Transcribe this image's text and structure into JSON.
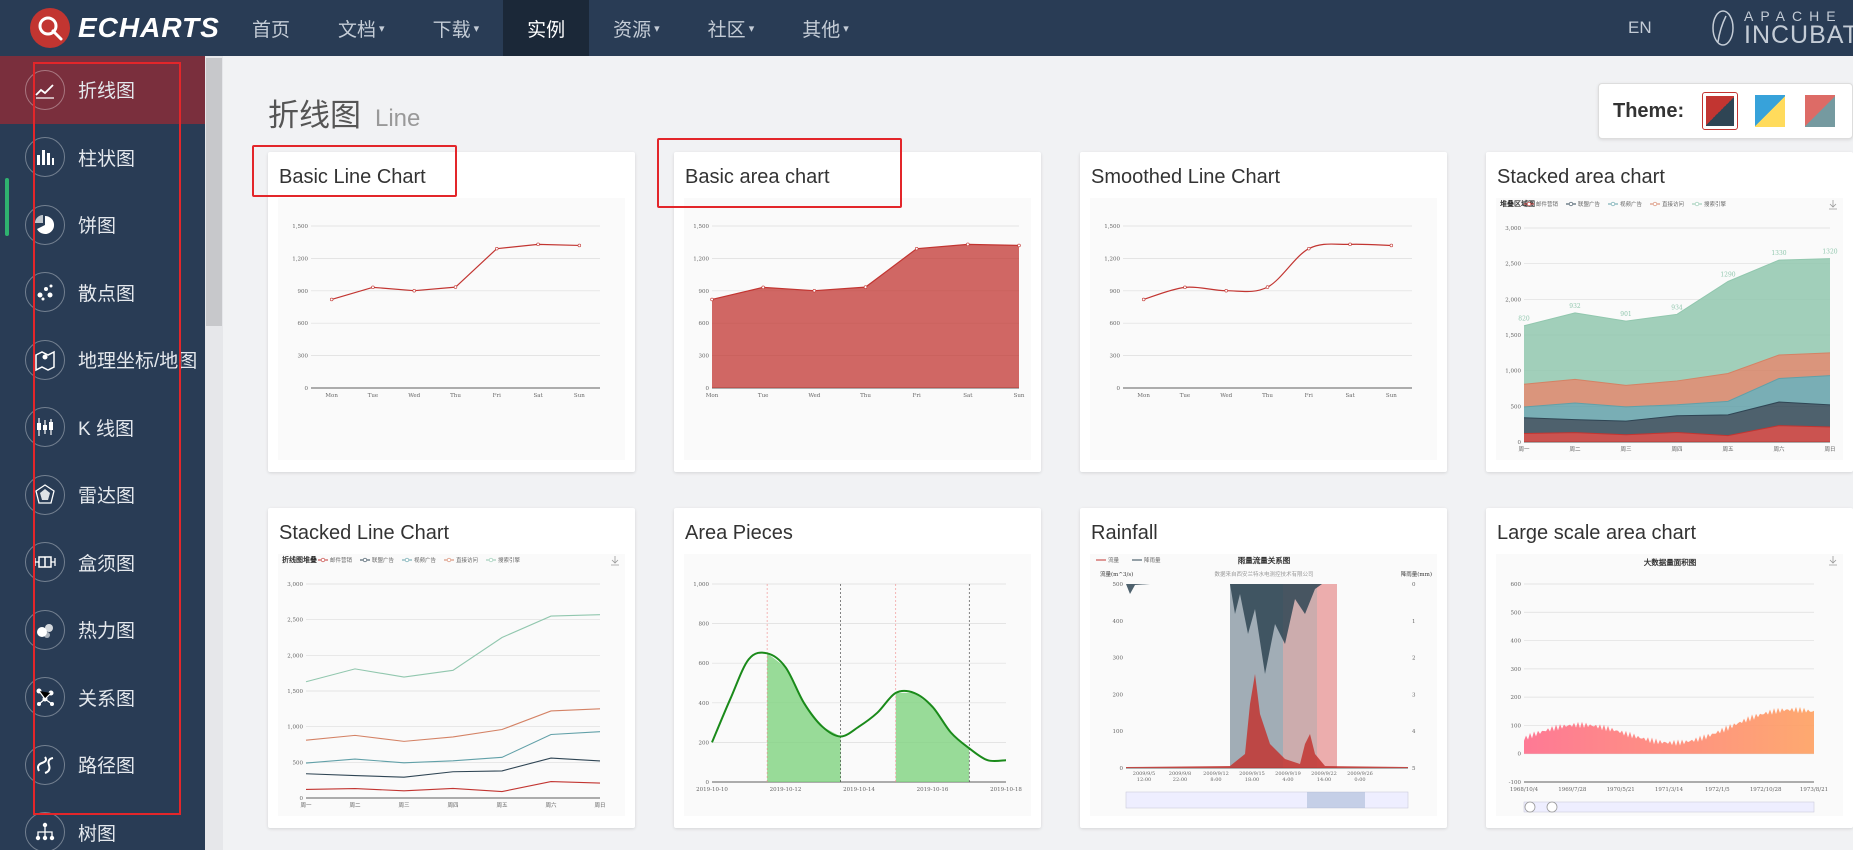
{
  "header": {
    "brand": "ECHARTS",
    "nav": [
      {
        "label": "首页",
        "dropdown": false,
        "active": false
      },
      {
        "label": "文档",
        "dropdown": true,
        "active": false
      },
      {
        "label": "下载",
        "dropdown": true,
        "active": false
      },
      {
        "label": "实例",
        "dropdown": false,
        "active": true
      },
      {
        "label": "资源",
        "dropdown": true,
        "active": false
      },
      {
        "label": "社区",
        "dropdown": true,
        "active": false
      },
      {
        "label": "其他",
        "dropdown": true,
        "active": false
      }
    ],
    "lang": "EN",
    "apache_top": "APACHE",
    "apache_bottom": "INCUBATOR"
  },
  "sidebar": {
    "items": [
      {
        "label": "折线图",
        "icon": "line-chart-icon",
        "active": true
      },
      {
        "label": "柱状图",
        "icon": "bar-chart-icon",
        "active": false
      },
      {
        "label": "饼图",
        "icon": "pie-chart-icon",
        "active": false
      },
      {
        "label": "散点图",
        "icon": "scatter-chart-icon",
        "active": false
      },
      {
        "label": "地理坐标/地图",
        "icon": "map-icon",
        "active": false
      },
      {
        "label": "K 线图",
        "icon": "candlestick-icon",
        "active": false
      },
      {
        "label": "雷达图",
        "icon": "radar-icon",
        "active": false
      },
      {
        "label": "盒须图",
        "icon": "boxplot-icon",
        "active": false
      },
      {
        "label": "热力图",
        "icon": "heatmap-icon",
        "active": false
      },
      {
        "label": "关系图",
        "icon": "graph-icon",
        "active": false
      },
      {
        "label": "路径图",
        "icon": "lines-icon",
        "active": false
      },
      {
        "label": "树图",
        "icon": "tree-icon",
        "active": false
      }
    ]
  },
  "page": {
    "title_cn": "折线图",
    "title_en": "Line",
    "theme_label": "Theme:"
  },
  "themes": [
    {
      "name": "default",
      "colors": [
        "#c23531",
        "#2f4554"
      ],
      "selected": true
    },
    {
      "name": "light",
      "colors": [
        "#37a2da",
        "#ffdb5c"
      ],
      "selected": false
    },
    {
      "name": "dark",
      "colors": [
        "#dd6b66",
        "#759aa0"
      ],
      "selected": false
    }
  ],
  "colors": {
    "accent": "#c23531",
    "nav_bg": "#293c55",
    "highlight": "#e3262a"
  },
  "cards": [
    {
      "title": "Basic Line Chart",
      "highlighted": true
    },
    {
      "title": "Basic area chart",
      "highlighted": true
    },
    {
      "title": "Smoothed Line Chart",
      "highlighted": false
    },
    {
      "title": "Stacked area chart",
      "highlighted": false
    },
    {
      "title": "Stacked Line Chart",
      "highlighted": false
    },
    {
      "title": "Area Pieces",
      "highlighted": false
    },
    {
      "title": "Rainfall",
      "highlighted": false
    },
    {
      "title": "Large scale area chart",
      "highlighted": false
    }
  ],
  "chart_data": [
    {
      "type": "line",
      "categories": [
        "Mon",
        "Tue",
        "Wed",
        "Thu",
        "Fri",
        "Sat",
        "Sun"
      ],
      "values": [
        820,
        932,
        901,
        934,
        1290,
        1330,
        1320
      ],
      "yticks": [
        "0",
        "300",
        "600",
        "900",
        "1,200",
        "1,500"
      ],
      "ylim": [
        0,
        1500
      ],
      "smooth": false,
      "area": false
    },
    {
      "type": "area",
      "categories": [
        "Mon",
        "Tue",
        "Wed",
        "Thu",
        "Fri",
        "Sat",
        "Sun"
      ],
      "values": [
        820,
        932,
        901,
        934,
        1290,
        1330,
        1320
      ],
      "yticks": [
        "0",
        "300",
        "600",
        "900",
        "1,200",
        "1,500"
      ],
      "ylim": [
        0,
        1500
      ],
      "smooth": false,
      "area": true
    },
    {
      "type": "line",
      "categories": [
        "Mon",
        "Tue",
        "Wed",
        "Thu",
        "Fri",
        "Sat",
        "Sun"
      ],
      "values": [
        820,
        932,
        901,
        934,
        1290,
        1330,
        1320
      ],
      "yticks": [
        "0",
        "300",
        "600",
        "900",
        "1,200",
        "1,500"
      ],
      "ylim": [
        0,
        1500
      ],
      "smooth": true,
      "area": false
    },
    {
      "type": "area",
      "stacked": true,
      "title": "堆叠区域图",
      "legend": [
        "邮件营销",
        "联盟广告",
        "视频广告",
        "直接访问",
        "搜索引擎"
      ],
      "categories": [
        "周一",
        "周二",
        "周三",
        "周四",
        "周五",
        "周六",
        "周日"
      ],
      "yticks": [
        "0",
        "500",
        "1,000",
        "1,500",
        "2,000",
        "2,500",
        "3,000"
      ],
      "ylim": [
        0,
        3000
      ],
      "top_labels": [
        "820",
        "932",
        "901",
        "934",
        "1290",
        "1330",
        "1320"
      ],
      "series": [
        {
          "name": "邮件营销",
          "values": [
            120,
            132,
            101,
            134,
            90,
            230,
            210
          ]
        },
        {
          "name": "联盟广告",
          "values": [
            220,
            182,
            191,
            234,
            290,
            330,
            310
          ]
        },
        {
          "name": "视频广告",
          "values": [
            150,
            232,
            201,
            154,
            190,
            330,
            410
          ]
        },
        {
          "name": "直接访问",
          "values": [
            320,
            332,
            301,
            334,
            390,
            330,
            320
          ]
        },
        {
          "name": "搜索引擎",
          "values": [
            820,
            932,
            901,
            934,
            1290,
            1330,
            1320
          ]
        }
      ]
    },
    {
      "type": "line",
      "title": "折线图堆叠",
      "legend": [
        "邮件营销",
        "联盟广告",
        "视频广告",
        "直接访问",
        "搜索引擎"
      ],
      "categories": [
        "周一",
        "周二",
        "周三",
        "周四",
        "周五",
        "周六",
        "周日"
      ],
      "yticks": [
        "0",
        "500",
        "1,000",
        "1,500",
        "2,000",
        "2,500",
        "3,000"
      ],
      "ylim": [
        0,
        3000
      ],
      "series": [
        {
          "name": "邮件营销",
          "values": [
            120,
            132,
            101,
            134,
            90,
            230,
            210
          ]
        },
        {
          "name": "联盟广告",
          "values": [
            340,
            314,
            292,
            368,
            380,
            560,
            520
          ]
        },
        {
          "name": "视频广告",
          "values": [
            490,
            546,
            493,
            522,
            570,
            890,
            930
          ]
        },
        {
          "name": "直接访问",
          "values": [
            810,
            878,
            794,
            856,
            960,
            1220,
            1250
          ]
        },
        {
          "name": "搜索引擎",
          "values": [
            1630,
            1810,
            1695,
            1790,
            2250,
            2550,
            2570
          ]
        }
      ]
    },
    {
      "type": "line",
      "categories": [
        "2019-10-10",
        "2019-10-12",
        "2019-10-14",
        "2019-10-16",
        "2019-10-18"
      ],
      "yticks": [
        "0",
        "200",
        "400",
        "600",
        "800",
        "1,000"
      ],
      "ylim": [
        0,
        1000
      ],
      "x": [
        0,
        0.5,
        1,
        1.5,
        2,
        2.5,
        3,
        3.5,
        4,
        4.5,
        5,
        5.5,
        6,
        6.5,
        7,
        7.5,
        8
      ],
      "values": [
        200,
        420,
        620,
        650,
        580,
        400,
        280,
        230,
        280,
        350,
        450,
        450,
        380,
        250,
        170,
        110,
        110
      ]
    },
    {
      "type": "area",
      "title": "雨量流量关系图",
      "subtitle": "数据来自西安兰特水电测控技术有限公司",
      "legend": [
        "流量",
        "降雨量"
      ],
      "ylabel_left": "流量(m^3/s)",
      "ylabel_right": "降雨量(mm)",
      "yticks_left": [
        "0",
        "100",
        "200",
        "300",
        "400",
        "500"
      ],
      "yticks_right": [
        "0",
        "1",
        "2",
        "3",
        "4",
        "5"
      ],
      "categories": [
        "2009/9/5 12:00",
        "2009/9/8 22:00",
        "2009/9/12 8:00",
        "2009/9/15 18:00",
        "2009/9/19 4:00",
        "2009/9/22 14:00",
        "2009/9/26 0:00"
      ]
    },
    {
      "type": "area",
      "title": "大数据量面积图",
      "yticks": [
        "-100",
        "0",
        "100",
        "200",
        "300",
        "400",
        "500",
        "600"
      ],
      "ylim": [
        -100,
        600
      ],
      "categories": [
        "1968/10/4",
        "1969/7/28",
        "1970/5/21",
        "1971/3/14",
        "1972/1/5",
        "1972/10/28",
        "1973/8/21"
      ]
    }
  ]
}
